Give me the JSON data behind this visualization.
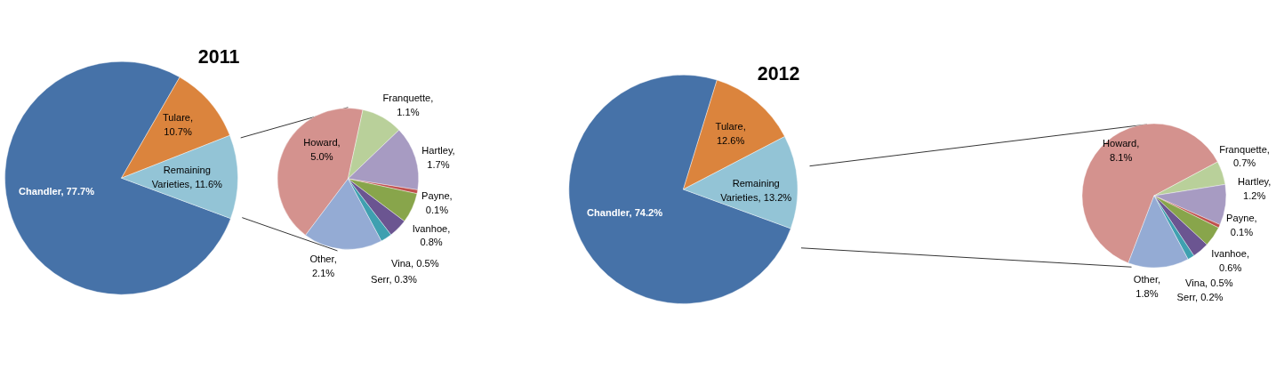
{
  "chart_data": [
    {
      "type": "pie",
      "title": "2011",
      "values": [
        77.7,
        10.7,
        11.6
      ],
      "colors": [
        "#4672a8",
        "#db843d",
        "#93c4d6"
      ],
      "value_labels": [
        "Chandler, 77.7%",
        "Tulare, 10.7%",
        "Remaining Varieties, 11.6%"
      ]
    },
    {
      "type": "pie",
      "values": [
        5.0,
        1.1,
        1.7,
        0.1,
        0.8,
        0.5,
        0.3,
        2.1
      ],
      "colors": [
        "#d4928e",
        "#b9d09a",
        "#a79bc2",
        "#c0504d",
        "#88a54b",
        "#6b5591",
        "#3fa0b0",
        "#94abd4"
      ],
      "value_labels": [
        "Howard, 5.0%",
        "Franquette, 1.1%",
        "Hartley, 1.7%",
        "Payne, 0.1%",
        "Ivanhoe, 0.8%",
        "Vina, 0.5%",
        "Serr, 0.3%",
        "Other, 2.1%"
      ]
    },
    {
      "type": "pie",
      "title": "2012",
      "values": [
        74.2,
        12.6,
        13.2
      ],
      "colors": [
        "#4672a8",
        "#db843d",
        "#93c4d6"
      ],
      "value_labels": [
        "Chandler, 74.2%",
        "Tulare, 12.6%",
        "Remaining Varieties, 13.2%"
      ]
    },
    {
      "type": "pie",
      "values": [
        8.1,
        0.7,
        1.2,
        0.1,
        0.6,
        0.5,
        0.2,
        1.8
      ],
      "colors": [
        "#d4928e",
        "#b9d09a",
        "#a79bc2",
        "#c0504d",
        "#88a54b",
        "#6b5591",
        "#3fa0b0",
        "#94abd4"
      ],
      "value_labels": [
        "Howard, 8.1%",
        "Franquette, 0.7%",
        "Hartley, 1.2%",
        "Payne, 0.1%",
        "Ivanhoe, 0.6%",
        "Vina, 0.5%",
        "Serr, 0.2%",
        "Other, 1.8%"
      ]
    }
  ]
}
